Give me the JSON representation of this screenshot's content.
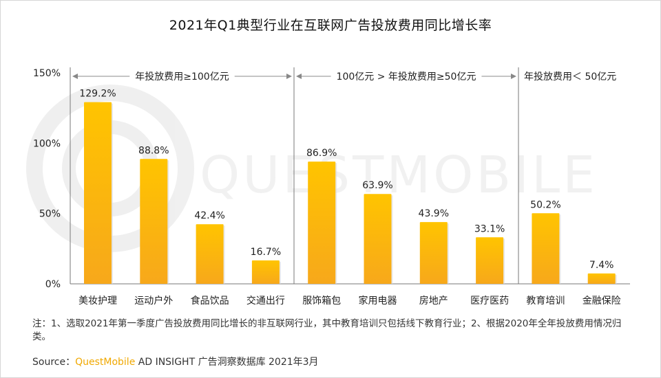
{
  "title": "2021年Q1典型行业在互联网广告投放费用同比增长率",
  "watermark": "QUESTMOBILE",
  "colors": {
    "bar_top": "#FFC400",
    "bar_bottom": "#F7A81B",
    "axis": "#888888",
    "text": "#222222",
    "brand": "#F0A800"
  },
  "chart_data": {
    "type": "bar",
    "title": "2021年Q1典型行业在互联网广告投放费用同比增长率",
    "categories": [
      "美妆护理",
      "运动户外",
      "食品饮品",
      "交通出行",
      "服饰箱包",
      "家用电器",
      "房地产",
      "医疗医药",
      "教育培训",
      "金融保险"
    ],
    "values": [
      129.2,
      88.8,
      42.4,
      16.7,
      86.9,
      63.9,
      43.9,
      33.1,
      50.2,
      7.4
    ],
    "value_labels": [
      "129.2%",
      "88.8%",
      "42.4%",
      "16.7%",
      "86.9%",
      "63.9%",
      "43.9%",
      "33.1%",
      "50.2%",
      "7.4%"
    ],
    "ylim": [
      0,
      150
    ],
    "yticks": [
      0,
      50,
      100,
      150
    ],
    "ytick_labels": [
      "0%",
      "50%",
      "100%",
      "150%"
    ],
    "groups": [
      {
        "label": "年投放费用≥100亿元",
        "start": 0,
        "end": 3,
        "arrows": true
      },
      {
        "label": "100亿元 > 年投放费用≥50亿元",
        "start": 4,
        "end": 7,
        "arrows": true
      },
      {
        "label": "年投放费用＜ 50亿元",
        "start": 8,
        "end": 9,
        "arrows": false
      }
    ],
    "grid": false
  },
  "footer": {
    "note": "注：1、选取2021年第一季度广告投放费用同比增长的非互联网行业，其中教育培训只包括线下教育行业；2、根据2020年全年投放费用情况归类。",
    "source_prefix": "Source：",
    "source_brand": "QuestMobile",
    "source_rest": " AD INSIGHT 广告洞察数据库 2021年3月"
  }
}
